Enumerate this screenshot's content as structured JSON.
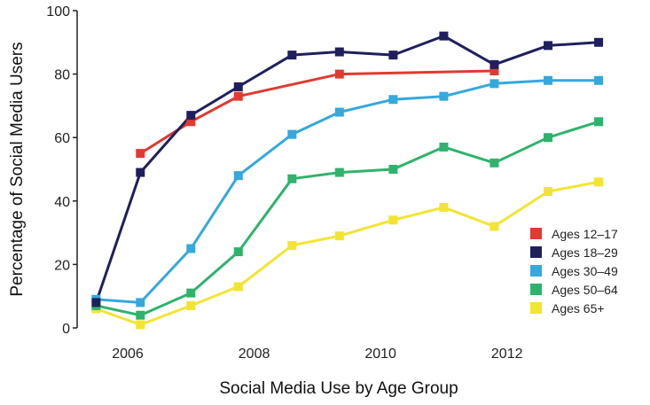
{
  "chart_data": {
    "type": "line",
    "xlabel": "Social Media Use by Age Group",
    "ylabel": "Percentage of Social Media Users",
    "xlim": [
      2005.2,
      2013.8
    ],
    "ylim": [
      0,
      100
    ],
    "x_ticks": [
      2006,
      2008,
      2010,
      2012
    ],
    "y_ticks": [
      0,
      20,
      40,
      60,
      80,
      100
    ],
    "grid": false,
    "legend_position": "bottom-right",
    "series": [
      {
        "name": "Ages 12–17",
        "color": "#e03a31",
        "points": [
          [
            2006.2,
            55
          ],
          [
            2007.0,
            65
          ],
          [
            2007.75,
            73
          ],
          [
            2009.35,
            80
          ],
          [
            2011.8,
            81
          ]
        ]
      },
      {
        "name": "Ages 18–29",
        "color": "#1f1f5e",
        "points": [
          [
            2005.5,
            8
          ],
          [
            2006.2,
            49
          ],
          [
            2007.0,
            67
          ],
          [
            2007.75,
            76
          ],
          [
            2008.6,
            86
          ],
          [
            2009.35,
            87
          ],
          [
            2010.2,
            86
          ],
          [
            2011.0,
            92
          ],
          [
            2011.8,
            83
          ],
          [
            2012.65,
            89
          ],
          [
            2013.45,
            90
          ]
        ]
      },
      {
        "name": "Ages 30–49",
        "color": "#35a8dc",
        "points": [
          [
            2005.5,
            9
          ],
          [
            2006.2,
            8
          ],
          [
            2007.0,
            25
          ],
          [
            2007.75,
            48
          ],
          [
            2008.6,
            61
          ],
          [
            2009.35,
            68
          ],
          [
            2010.2,
            72
          ],
          [
            2011.0,
            73
          ],
          [
            2011.8,
            77
          ],
          [
            2012.65,
            78
          ],
          [
            2013.45,
            78
          ]
        ]
      },
      {
        "name": "Ages 50–64",
        "color": "#2fb36c",
        "points": [
          [
            2005.5,
            7
          ],
          [
            2006.2,
            4
          ],
          [
            2007.0,
            11
          ],
          [
            2007.75,
            24
          ],
          [
            2008.6,
            47
          ],
          [
            2009.35,
            49
          ],
          [
            2010.2,
            50
          ],
          [
            2011.0,
            57
          ],
          [
            2011.8,
            52
          ],
          [
            2012.65,
            60
          ],
          [
            2013.45,
            65
          ]
        ]
      },
      {
        "name": "Ages 65+",
        "color": "#f2e532",
        "points": [
          [
            2005.5,
            6
          ],
          [
            2006.2,
            1
          ],
          [
            2007.0,
            7
          ],
          [
            2007.75,
            13
          ],
          [
            2008.6,
            26
          ],
          [
            2009.35,
            29
          ],
          [
            2010.2,
            34
          ],
          [
            2011.0,
            38
          ],
          [
            2011.8,
            32
          ],
          [
            2012.65,
            43
          ],
          [
            2013.45,
            46
          ]
        ]
      }
    ]
  }
}
